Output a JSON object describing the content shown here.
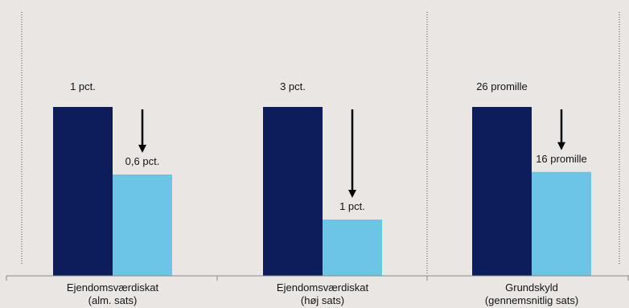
{
  "colors": {
    "background": "#EAE6E3",
    "axis": "#8A8A8A",
    "separator": "#4A4A4A",
    "arrow": "#000000"
  },
  "chart_data": {
    "type": "bar",
    "grid": false,
    "legend": false,
    "y_axis": false,
    "categories": [
      [
        "Ejendomsværdiskat",
        "(alm. sats)"
      ],
      [
        "Ejendomsværdiskat",
        "(høj sats)"
      ],
      [
        "Grundskyld",
        "(gennemsnitlig sats)"
      ]
    ],
    "series": [
      {
        "color": "#0B1D5B",
        "values": [
          1,
          3,
          26
        ],
        "data_labels": [
          "1 pct.",
          "3 pct.",
          "26 promille"
        ]
      },
      {
        "color": "#6DC5E6",
        "values": [
          0.6,
          1,
          16
        ],
        "data_labels": [
          "0,6 pct.",
          "1 pct.",
          "16 promille"
        ]
      }
    ],
    "annotation_icon": "arrow-down-icon"
  }
}
